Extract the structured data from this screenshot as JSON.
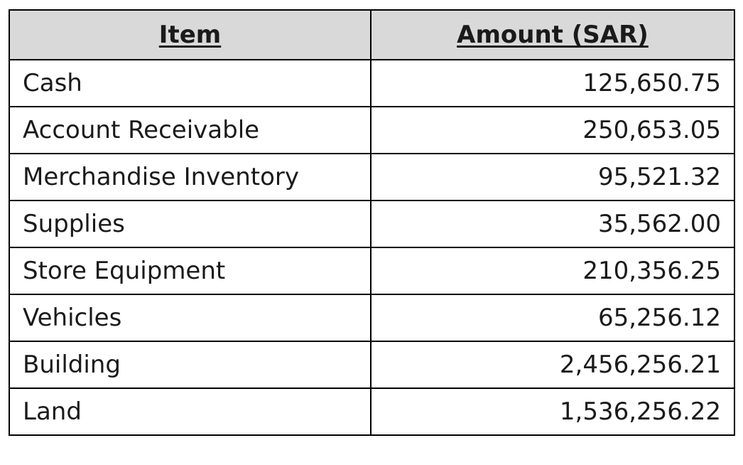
{
  "table": {
    "headers": [
      "Item",
      "Amount (SAR)"
    ],
    "rows": [
      {
        "item": "Cash",
        "amount": "125,650.75"
      },
      {
        "item": "Account Receivable",
        "amount": "250,653.05"
      },
      {
        "item": "Merchandise Inventory",
        "amount": "95,521.32"
      },
      {
        "item": "Supplies",
        "amount": "35,562.00"
      },
      {
        "item": "Store Equipment",
        "amount": "210,356.25"
      },
      {
        "item": "Vehicles",
        "amount": "65,256.12"
      },
      {
        "item": "Building",
        "amount": "2,456,256.21"
      },
      {
        "item": "Land",
        "amount": "1,536,256.22"
      }
    ]
  }
}
